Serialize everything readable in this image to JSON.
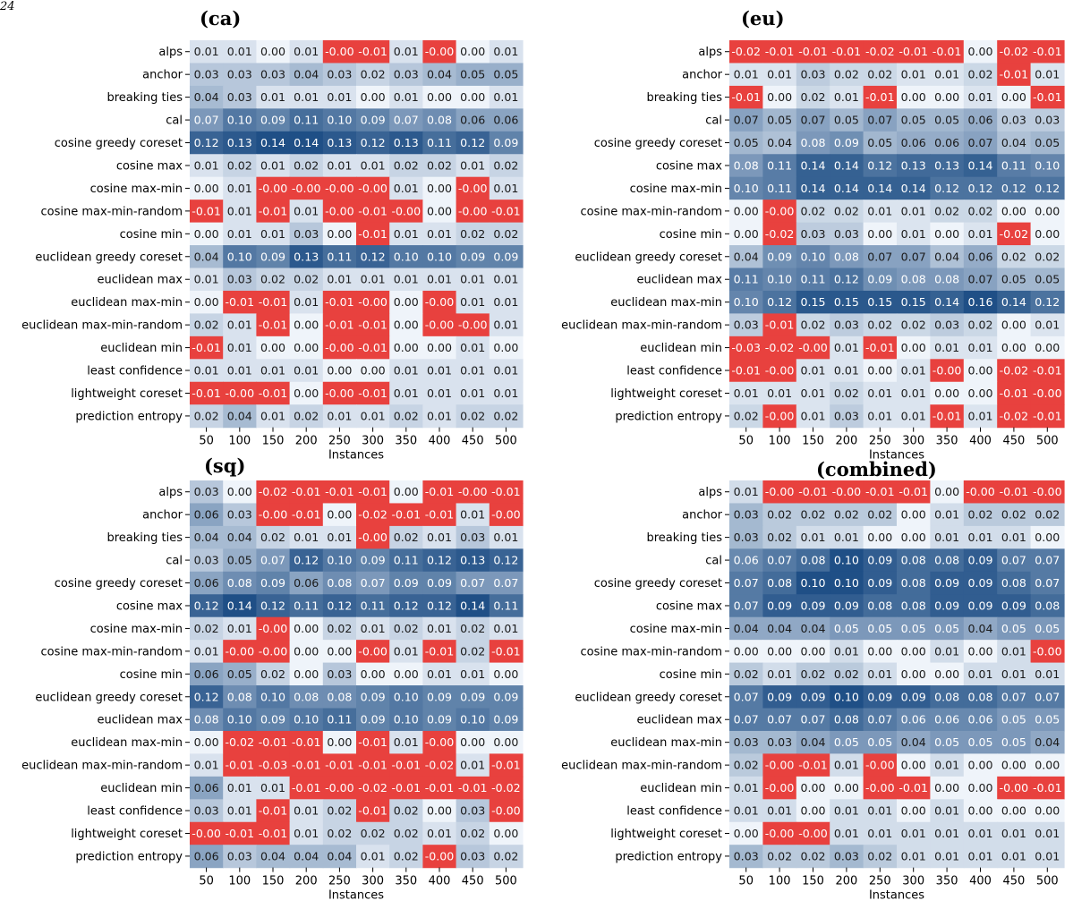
{
  "page_number": "24",
  "colors": {
    "negative": "#e8413e",
    "low": "#eff4fa",
    "high": "#1f4f86",
    "cell_text_light": "#ffffff",
    "cell_text_dark": "#1a1a1a"
  },
  "chart_data": [
    {
      "type": "heatmap",
      "title": "(ca)",
      "xlabel": "Instances",
      "ylabel": "",
      "x": [
        "50",
        "100",
        "150",
        "200",
        "250",
        "300",
        "350",
        "400",
        "450",
        "500"
      ],
      "y": [
        "alps",
        "anchor",
        "breaking ties",
        "cal",
        "cosine greedy coreset",
        "cosine max",
        "cosine max-min",
        "cosine max-min-random",
        "cosine min",
        "euclidean greedy coreset",
        "euclidean max",
        "euclidean max-min",
        "euclidean max-min-random",
        "euclidean min",
        "least confidence",
        "lightweight coreset",
        "prediction entropy"
      ],
      "labels": [
        [
          "0.01",
          "0.01",
          "0.00",
          "0.01",
          "-0.00",
          "-0.01",
          "0.01",
          "-0.00",
          "0.00",
          "0.01"
        ],
        [
          "0.03",
          "0.03",
          "0.03",
          "0.04",
          "0.03",
          "0.02",
          "0.03",
          "0.04",
          "0.05",
          "0.05"
        ],
        [
          "0.04",
          "0.03",
          "0.01",
          "0.01",
          "0.01",
          "0.00",
          "0.01",
          "0.00",
          "0.00",
          "0.01"
        ],
        [
          "0.07",
          "0.10",
          "0.09",
          "0.11",
          "0.10",
          "0.09",
          "0.07",
          "0.08",
          "0.06",
          "0.06"
        ],
        [
          "0.12",
          "0.13",
          "0.14",
          "0.14",
          "0.13",
          "0.12",
          "0.13",
          "0.11",
          "0.12",
          "0.09"
        ],
        [
          "0.01",
          "0.02",
          "0.01",
          "0.02",
          "0.01",
          "0.01",
          "0.02",
          "0.02",
          "0.01",
          "0.02"
        ],
        [
          "0.00",
          "0.01",
          "-0.00",
          "-0.00",
          "-0.00",
          "-0.00",
          "0.01",
          "0.00",
          "-0.00",
          "0.01"
        ],
        [
          "-0.01",
          "0.01",
          "-0.01",
          "0.01",
          "-0.00",
          "-0.01",
          "-0.00",
          "0.00",
          "-0.00",
          "-0.01"
        ],
        [
          "0.00",
          "0.01",
          "0.01",
          "0.03",
          "0.00",
          "-0.01",
          "0.01",
          "0.01",
          "0.02",
          "0.02"
        ],
        [
          "0.04",
          "0.10",
          "0.09",
          "0.13",
          "0.11",
          "0.12",
          "0.10",
          "0.10",
          "0.09",
          "0.09"
        ],
        [
          "0.01",
          "0.03",
          "0.02",
          "0.02",
          "0.01",
          "0.01",
          "0.01",
          "0.01",
          "0.01",
          "0.01"
        ],
        [
          "0.00",
          "-0.01",
          "-0.01",
          "0.01",
          "-0.01",
          "-0.00",
          "0.00",
          "-0.00",
          "0.01",
          "0.01"
        ],
        [
          "0.02",
          "0.01",
          "-0.01",
          "0.00",
          "-0.01",
          "-0.01",
          "0.00",
          "-0.00",
          "-0.00",
          "0.01"
        ],
        [
          "-0.01",
          "0.01",
          "0.00",
          "0.00",
          "-0.00",
          "-0.01",
          "0.00",
          "0.00",
          "0.01",
          "0.00"
        ],
        [
          "0.01",
          "0.01",
          "0.01",
          "0.01",
          "0.00",
          "0.00",
          "0.01",
          "0.01",
          "0.01",
          "0.01"
        ],
        [
          "-0.01",
          "-0.00",
          "-0.01",
          "0.00",
          "-0.00",
          "-0.01",
          "0.01",
          "0.01",
          "0.01",
          "0.01"
        ],
        [
          "0.02",
          "0.04",
          "0.01",
          "0.02",
          "0.01",
          "0.01",
          "0.02",
          "0.01",
          "0.02",
          "0.02"
        ]
      ]
    },
    {
      "type": "heatmap",
      "title": "(eu)",
      "xlabel": "Instances",
      "ylabel": "",
      "x": [
        "50",
        "100",
        "150",
        "200",
        "250",
        "300",
        "350",
        "400",
        "450",
        "500"
      ],
      "y": [
        "alps",
        "anchor",
        "breaking ties",
        "cal",
        "cosine greedy coreset",
        "cosine max",
        "cosine max-min",
        "cosine max-min-random",
        "cosine min",
        "euclidean greedy coreset",
        "euclidean max",
        "euclidean max-min",
        "euclidean max-min-random",
        "euclidean min",
        "least confidence",
        "lightweight coreset",
        "prediction entropy"
      ],
      "labels": [
        [
          "-0.02",
          "-0.01",
          "-0.01",
          "-0.01",
          "-0.02",
          "-0.01",
          "-0.01",
          "0.00",
          "-0.02",
          "-0.01"
        ],
        [
          "0.01",
          "0.01",
          "0.03",
          "0.02",
          "0.02",
          "0.01",
          "0.01",
          "0.02",
          "-0.01",
          "0.01"
        ],
        [
          "-0.01",
          "0.00",
          "0.02",
          "0.01",
          "-0.01",
          "0.00",
          "0.00",
          "0.01",
          "0.00",
          "-0.01"
        ],
        [
          "0.07",
          "0.05",
          "0.07",
          "0.05",
          "0.07",
          "0.05",
          "0.05",
          "0.06",
          "0.03",
          "0.03"
        ],
        [
          "0.05",
          "0.04",
          "0.08",
          "0.09",
          "0.05",
          "0.06",
          "0.06",
          "0.07",
          "0.04",
          "0.05"
        ],
        [
          "0.08",
          "0.11",
          "0.14",
          "0.14",
          "0.12",
          "0.13",
          "0.13",
          "0.14",
          "0.11",
          "0.10"
        ],
        [
          "0.10",
          "0.11",
          "0.14",
          "0.14",
          "0.14",
          "0.14",
          "0.12",
          "0.12",
          "0.12",
          "0.12"
        ],
        [
          "0.00",
          "-0.00",
          "0.02",
          "0.02",
          "0.01",
          "0.01",
          "0.02",
          "0.02",
          "0.00",
          "0.00"
        ],
        [
          "0.00",
          "-0.02",
          "0.03",
          "0.03",
          "0.00",
          "0.01",
          "0.00",
          "0.01",
          "-0.02",
          "0.00"
        ],
        [
          "0.04",
          "0.09",
          "0.10",
          "0.08",
          "0.07",
          "0.07",
          "0.04",
          "0.06",
          "0.02",
          "0.02"
        ],
        [
          "0.11",
          "0.10",
          "0.11",
          "0.12",
          "0.09",
          "0.08",
          "0.08",
          "0.07",
          "0.05",
          "0.05"
        ],
        [
          "0.10",
          "0.12",
          "0.15",
          "0.15",
          "0.15",
          "0.15",
          "0.14",
          "0.16",
          "0.14",
          "0.12"
        ],
        [
          "0.03",
          "-0.01",
          "0.02",
          "0.03",
          "0.02",
          "0.02",
          "0.03",
          "0.02",
          "0.00",
          "0.01"
        ],
        [
          "-0.03",
          "-0.02",
          "-0.00",
          "0.01",
          "-0.01",
          "0.00",
          "0.01",
          "0.01",
          "0.00",
          "0.00"
        ],
        [
          "-0.01",
          "-0.00",
          "0.01",
          "0.01",
          "0.00",
          "0.01",
          "-0.00",
          "0.00",
          "-0.02",
          "-0.01"
        ],
        [
          "0.01",
          "0.01",
          "0.01",
          "0.02",
          "0.01",
          "0.01",
          "0.00",
          "0.00",
          "-0.01",
          "-0.00"
        ],
        [
          "0.02",
          "-0.00",
          "0.01",
          "0.03",
          "0.01",
          "0.01",
          "-0.01",
          "0.01",
          "-0.02",
          "-0.01"
        ]
      ]
    },
    {
      "type": "heatmap",
      "title": "(sq)",
      "xlabel": "Instances",
      "ylabel": "",
      "x": [
        "50",
        "100",
        "150",
        "200",
        "250",
        "300",
        "350",
        "400",
        "450",
        "500"
      ],
      "y": [
        "alps",
        "anchor",
        "breaking ties",
        "cal",
        "cosine greedy coreset",
        "cosine max",
        "cosine max-min",
        "cosine max-min-random",
        "cosine min",
        "euclidean greedy coreset",
        "euclidean max",
        "euclidean max-min",
        "euclidean max-min-random",
        "euclidean min",
        "least confidence",
        "lightweight coreset",
        "prediction entropy"
      ],
      "labels": [
        [
          "0.03",
          "0.00",
          "-0.02",
          "-0.01",
          "-0.01",
          "-0.01",
          "0.00",
          "-0.01",
          "-0.00",
          "-0.01"
        ],
        [
          "0.06",
          "0.03",
          "-0.00",
          "-0.01",
          "0.00",
          "-0.02",
          "-0.01",
          "-0.01",
          "0.01",
          "-0.00"
        ],
        [
          "0.04",
          "0.04",
          "0.02",
          "0.01",
          "0.01",
          "-0.00",
          "0.02",
          "0.01",
          "0.03",
          "0.01"
        ],
        [
          "0.03",
          "0.05",
          "0.07",
          "0.12",
          "0.10",
          "0.09",
          "0.11",
          "0.12",
          "0.13",
          "0.12"
        ],
        [
          "0.06",
          "0.08",
          "0.09",
          "0.06",
          "0.08",
          "0.07",
          "0.09",
          "0.09",
          "0.07",
          "0.07"
        ],
        [
          "0.12",
          "0.14",
          "0.12",
          "0.11",
          "0.12",
          "0.11",
          "0.12",
          "0.12",
          "0.14",
          "0.11"
        ],
        [
          "0.02",
          "0.01",
          "-0.00",
          "0.00",
          "0.02",
          "0.01",
          "0.02",
          "0.01",
          "0.02",
          "0.01"
        ],
        [
          "0.01",
          "-0.00",
          "-0.00",
          "0.00",
          "0.00",
          "-0.00",
          "0.01",
          "-0.01",
          "0.02",
          "-0.01"
        ],
        [
          "0.06",
          "0.05",
          "0.02",
          "0.00",
          "0.03",
          "0.00",
          "0.00",
          "0.01",
          "0.01",
          "0.00"
        ],
        [
          "0.12",
          "0.08",
          "0.10",
          "0.08",
          "0.08",
          "0.09",
          "0.10",
          "0.09",
          "0.09",
          "0.09"
        ],
        [
          "0.08",
          "0.10",
          "0.09",
          "0.10",
          "0.11",
          "0.09",
          "0.10",
          "0.09",
          "0.10",
          "0.09"
        ],
        [
          "0.00",
          "-0.02",
          "-0.01",
          "-0.01",
          "0.00",
          "-0.01",
          "0.01",
          "-0.00",
          "0.00",
          "0.00"
        ],
        [
          "0.01",
          "-0.01",
          "-0.03",
          "-0.01",
          "-0.01",
          "-0.01",
          "-0.01",
          "-0.02",
          "0.01",
          "-0.01"
        ],
        [
          "0.06",
          "0.01",
          "0.01",
          "-0.01",
          "-0.00",
          "-0.02",
          "-0.01",
          "-0.01",
          "-0.01",
          "-0.02"
        ],
        [
          "0.03",
          "0.01",
          "-0.01",
          "0.01",
          "0.02",
          "-0.01",
          "0.02",
          "0.00",
          "0.03",
          "-0.00"
        ],
        [
          "-0.00",
          "-0.01",
          "-0.01",
          "0.01",
          "0.02",
          "0.02",
          "0.02",
          "0.01",
          "0.02",
          "0.00"
        ],
        [
          "0.06",
          "0.03",
          "0.04",
          "0.04",
          "0.04",
          "0.01",
          "0.02",
          "-0.00",
          "0.03",
          "0.02"
        ]
      ]
    },
    {
      "type": "heatmap",
      "title": "(combined)",
      "xlabel": "Instances",
      "ylabel": "",
      "x": [
        "50",
        "100",
        "150",
        "200",
        "250",
        "300",
        "350",
        "400",
        "450",
        "500"
      ],
      "y": [
        "alps",
        "anchor",
        "breaking ties",
        "cal",
        "cosine greedy coreset",
        "cosine max",
        "cosine max-min",
        "cosine max-min-random",
        "cosine min",
        "euclidean greedy coreset",
        "euclidean max",
        "euclidean max-min",
        "euclidean max-min-random",
        "euclidean min",
        "least confidence",
        "lightweight coreset",
        "prediction entropy"
      ],
      "labels": [
        [
          "0.01",
          "-0.00",
          "-0.01",
          "-0.00",
          "-0.01",
          "-0.01",
          "0.00",
          "-0.00",
          "-0.01",
          "-0.00"
        ],
        [
          "0.03",
          "0.02",
          "0.02",
          "0.02",
          "0.02",
          "0.00",
          "0.01",
          "0.02",
          "0.02",
          "0.02"
        ],
        [
          "0.03",
          "0.02",
          "0.01",
          "0.01",
          "0.00",
          "0.00",
          "0.01",
          "0.01",
          "0.01",
          "0.00"
        ],
        [
          "0.06",
          "0.07",
          "0.08",
          "0.10",
          "0.09",
          "0.08",
          "0.08",
          "0.09",
          "0.07",
          "0.07"
        ],
        [
          "0.07",
          "0.08",
          "0.10",
          "0.10",
          "0.09",
          "0.08",
          "0.09",
          "0.09",
          "0.08",
          "0.07"
        ],
        [
          "0.07",
          "0.09",
          "0.09",
          "0.09",
          "0.08",
          "0.08",
          "0.09",
          "0.09",
          "0.09",
          "0.08"
        ],
        [
          "0.04",
          "0.04",
          "0.04",
          "0.05",
          "0.05",
          "0.05",
          "0.05",
          "0.04",
          "0.05",
          "0.05"
        ],
        [
          "0.00",
          "0.00",
          "0.00",
          "0.01",
          "0.00",
          "0.00",
          "0.01",
          "0.00",
          "0.01",
          "-0.00"
        ],
        [
          "0.02",
          "0.01",
          "0.02",
          "0.02",
          "0.01",
          "0.00",
          "0.00",
          "0.01",
          "0.01",
          "0.01"
        ],
        [
          "0.07",
          "0.09",
          "0.09",
          "0.10",
          "0.09",
          "0.09",
          "0.08",
          "0.08",
          "0.07",
          "0.07"
        ],
        [
          "0.07",
          "0.07",
          "0.07",
          "0.08",
          "0.07",
          "0.06",
          "0.06",
          "0.06",
          "0.05",
          "0.05"
        ],
        [
          "0.03",
          "0.03",
          "0.04",
          "0.05",
          "0.05",
          "0.04",
          "0.05",
          "0.05",
          "0.05",
          "0.04"
        ],
        [
          "0.02",
          "-0.00",
          "-0.01",
          "0.01",
          "-0.00",
          "0.00",
          "0.01",
          "0.00",
          "0.00",
          "0.00"
        ],
        [
          "0.01",
          "-0.00",
          "0.00",
          "0.00",
          "-0.00",
          "-0.01",
          "0.00",
          "0.00",
          "-0.00",
          "-0.01"
        ],
        [
          "0.01",
          "0.01",
          "0.00",
          "0.01",
          "0.01",
          "0.00",
          "0.01",
          "0.00",
          "0.00",
          "0.00"
        ],
        [
          "0.00",
          "-0.00",
          "-0.00",
          "0.01",
          "0.01",
          "0.01",
          "0.01",
          "0.01",
          "0.01",
          "0.01"
        ],
        [
          "0.03",
          "0.02",
          "0.02",
          "0.03",
          "0.02",
          "0.01",
          "0.01",
          "0.01",
          "0.01",
          "0.01"
        ]
      ]
    }
  ]
}
